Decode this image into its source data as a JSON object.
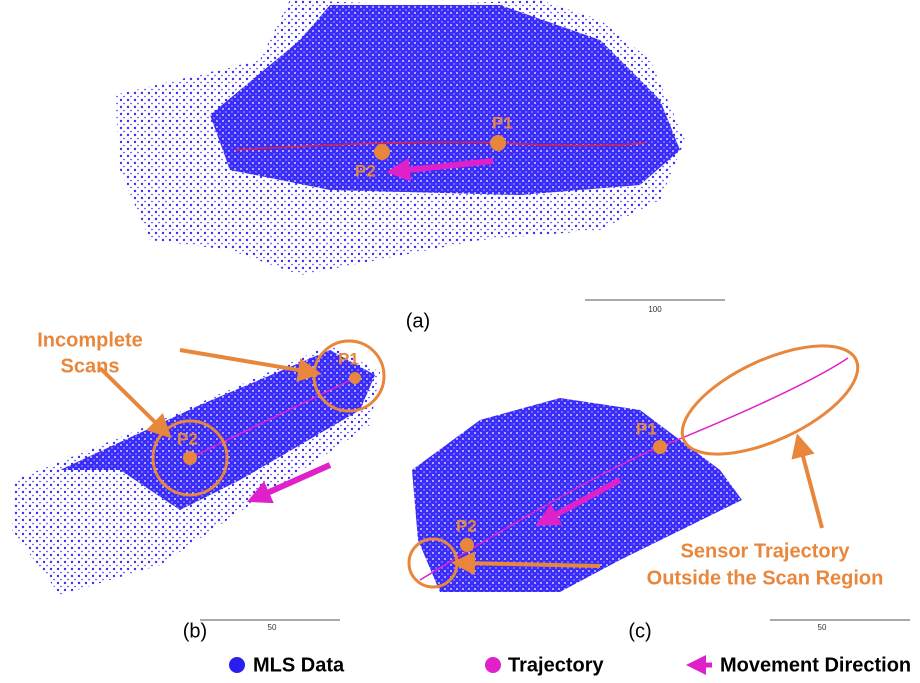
{
  "panels": [
    {
      "label": "(a)",
      "points": [
        "P1",
        "P2"
      ],
      "scale_label": "100"
    },
    {
      "label": "(b)",
      "points": [
        "P1",
        "P2"
      ],
      "scale_label": "50",
      "annotation": [
        "Incomplete",
        "Scans"
      ]
    },
    {
      "label": "(c)",
      "points": [
        "P1",
        "P2"
      ],
      "scale_label": "50",
      "annotation": [
        "Sensor Trajectory",
        "Outside the Scan Region"
      ]
    }
  ],
  "legend": [
    "MLS Data",
    "Trajectory",
    "Movement Direction"
  ]
}
